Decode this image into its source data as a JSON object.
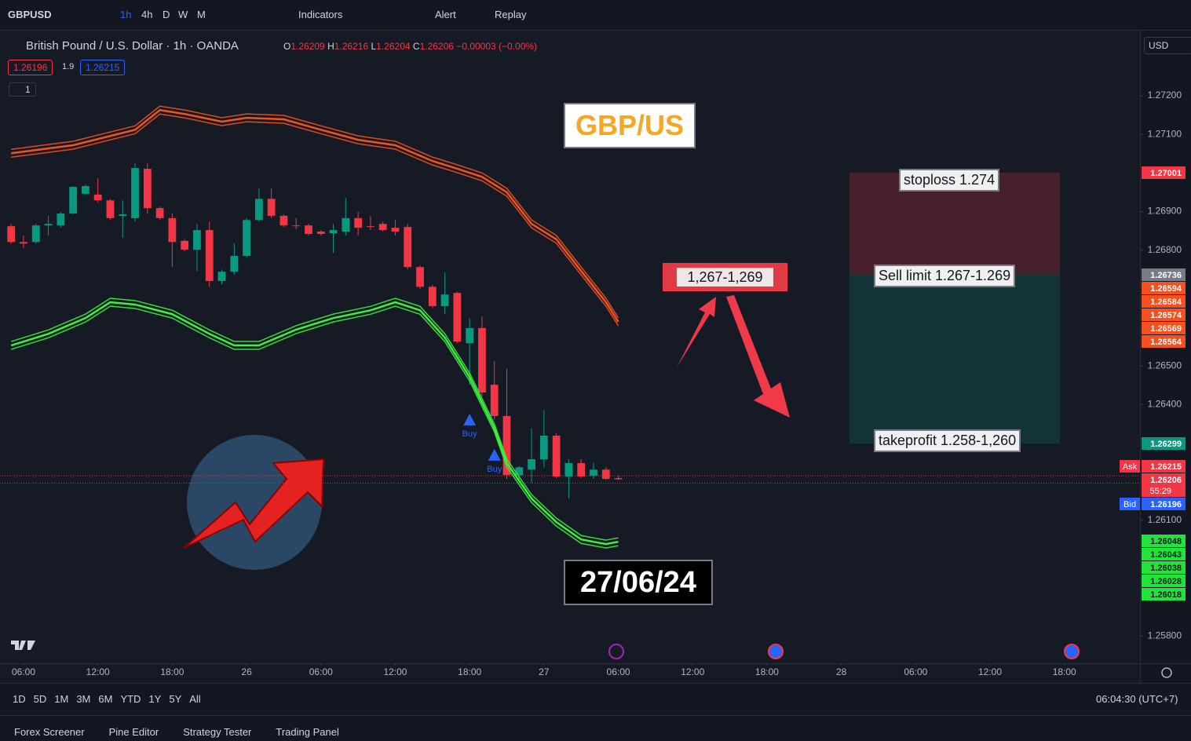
{
  "toolbar": {
    "symbol": "GBPUSD",
    "intervals": [
      "1h",
      "4h",
      "D",
      "W",
      "M"
    ],
    "indicators": "Indicators",
    "alert": "Alert",
    "replay": "Replay"
  },
  "legend": {
    "title": "British Pound / U.S. Dollar · 1h · OANDA",
    "o": "O",
    "h": "H",
    "l": "L",
    "c": "C",
    "change": "−0.00003 (−0.00%)",
    "sell": "1.26196",
    "spread": "1.9",
    "buy": "1.26215",
    "collapse": "1"
  },
  "currency": "USD",
  "chart_data": {
    "type": "candlestick",
    "up_color": "#089981",
    "down_color": "#f23645",
    "open": [
      1.26862,
      1.26821,
      1.26821,
      1.26864,
      1.26864,
      1.26895,
      1.26946,
      1.26944,
      1.26929,
      1.26889,
      1.26883,
      1.27011,
      1.26909,
      1.26883,
      1.26824,
      1.26801,
      1.26852,
      1.2672,
      1.26744,
      1.26785,
      1.26878,
      1.26933,
      1.26889,
      1.26864,
      1.26864,
      1.26848,
      1.26844,
      1.26848,
      1.26883,
      1.26862,
      1.26868,
      1.26858,
      1.2686,
      1.26756,
      1.26705,
      1.26655,
      1.26689,
      1.26559,
      1.26598,
      1.26451,
      1.2637,
      1.26217,
      1.26231,
      1.26258,
      1.26319,
      1.26213,
      1.26248,
      1.26215,
      1.26231,
      1.26209
    ],
    "high": [
      1.26868,
      1.26838,
      1.26868,
      1.26889,
      1.26899,
      1.26966,
      1.2697,
      1.26986,
      1.26933,
      1.26929,
      1.27025,
      1.27025,
      1.26913,
      1.26895,
      1.26828,
      1.26868,
      1.26874,
      1.2675,
      1.26817,
      1.26883,
      1.2696,
      1.2696,
      1.26893,
      1.26883,
      1.26868,
      1.26852,
      1.26868,
      1.26935,
      1.26899,
      1.26889,
      1.26874,
      1.26878,
      1.26868,
      1.2676,
      1.2671,
      1.26742,
      1.26693,
      1.26624,
      1.26628,
      1.26512,
      1.26492,
      1.26241,
      1.26339,
      1.26386,
      1.26325,
      1.26258,
      1.26258,
      1.26248,
      1.26237,
      1.26216
    ],
    "low": [
      1.26817,
      1.26805,
      1.26817,
      1.26838,
      1.26858,
      1.26893,
      1.26944,
      1.26923,
      1.26878,
      1.26832,
      1.26874,
      1.26895,
      1.26878,
      1.26756,
      1.26797,
      1.26746,
      1.26705,
      1.26712,
      1.26736,
      1.2678,
      1.26874,
      1.26883,
      1.2686,
      1.26854,
      1.26838,
      1.26838,
      1.26793,
      1.26838,
      1.26838,
      1.26852,
      1.26848,
      1.26838,
      1.2675,
      1.267,
      1.2665,
      1.26634,
      1.26559,
      1.26451,
      1.26421,
      1.2636,
      1.26207,
      1.26207,
      1.26197,
      1.26237,
      1.26209,
      1.26156,
      1.26209,
      1.26207,
      1.26205,
      1.26204
    ],
    "close": [
      1.26821,
      1.26817,
      1.26864,
      1.26868,
      1.26895,
      1.26964,
      1.26966,
      1.26929,
      1.26883,
      1.26893,
      1.27013,
      1.26909,
      1.26883,
      1.26821,
      1.26801,
      1.26852,
      1.2672,
      1.26744,
      1.26785,
      1.26878,
      1.26933,
      1.26889,
      1.26864,
      1.26862,
      1.26842,
      1.26842,
      1.26852,
      1.26883,
      1.26858,
      1.2686,
      1.26852,
      1.26848,
      1.26756,
      1.26705,
      1.26655,
      1.26685,
      1.26563,
      1.26598,
      1.26431,
      1.2637,
      1.26217,
      1.26237,
      1.26258,
      1.26319,
      1.26213,
      1.26248,
      1.26213,
      1.26231,
      1.26207,
      1.26206
    ],
    "bands": [
      {
        "color": "#f4511e",
        "x": [
          0,
          5,
          10,
          12,
          14,
          17,
          19,
          22,
          25,
          28,
          31,
          34,
          36,
          38,
          40,
          42,
          44,
          46,
          48,
          49
        ],
        "values": [
          1.27051,
          1.27072,
          1.27112,
          1.27163,
          1.27153,
          1.27133,
          1.27143,
          1.27139,
          1.27112,
          1.27086,
          1.27072,
          1.27031,
          1.27011,
          1.2699,
          1.2695,
          1.26868,
          1.26828,
          1.26746,
          1.26665,
          1.26614
        ]
      },
      {
        "color": "#3cf03c",
        "x": [
          0,
          3,
          6,
          8,
          10,
          13,
          16,
          18,
          20,
          23,
          26,
          29,
          31,
          33,
          35,
          37,
          39,
          40,
          42,
          44,
          46,
          48,
          49
        ],
        "values": [
          1.26553,
          1.26583,
          1.26624,
          1.26665,
          1.26659,
          1.26634,
          1.26583,
          1.26553,
          1.26553,
          1.26594,
          1.26624,
          1.26644,
          1.26665,
          1.26644,
          1.26573,
          1.26471,
          1.26339,
          1.26248,
          1.26156,
          1.26095,
          1.2605,
          1.26038,
          1.26044
        ]
      }
    ],
    "price_lines": [
      {
        "value": 1.26215,
        "color": "#f23645"
      },
      {
        "value": 1.26196,
        "color": "#2962ff"
      }
    ],
    "position": {
      "stop": 1.27001,
      "entry": 1.26736,
      "target": 1.26299
    },
    "signals": [
      {
        "x": 37,
        "label": "Buy"
      },
      {
        "x": 39,
        "label": "Buy"
      }
    ],
    "ylim": [
      1.25729,
      1.27367
    ],
    "yticks": [
      {
        "value": 1.272,
        "label": "1.27200"
      },
      {
        "value": 1.271,
        "label": "1.27100"
      },
      {
        "value": 1.269,
        "label": "1.26900"
      },
      {
        "value": 1.268,
        "label": "1.26800"
      },
      {
        "value": 1.265,
        "label": "1.26500"
      },
      {
        "value": 1.264,
        "label": "1.26400"
      },
      {
        "value": 1.261,
        "label": "1.26100"
      },
      {
        "value": 1.258,
        "label": "1.25800"
      }
    ],
    "xlim": [
      -0.9,
      91.1
    ],
    "xticks": [
      {
        "value": 1,
        "label": "06:00"
      },
      {
        "value": 7,
        "label": "12:00"
      },
      {
        "value": 13,
        "label": "18:00"
      },
      {
        "value": 19,
        "label": "26"
      },
      {
        "value": 25,
        "label": "06:00"
      },
      {
        "value": 31,
        "label": "12:00"
      },
      {
        "value": 37,
        "label": "18:00"
      },
      {
        "value": 43,
        "label": "27"
      },
      {
        "value": 49,
        "label": "06:00"
      },
      {
        "value": 55,
        "label": "12:00"
      },
      {
        "value": 61,
        "label": "18:00"
      },
      {
        "value": 67,
        "label": "28"
      },
      {
        "value": 73,
        "label": "06:00"
      },
      {
        "value": 79,
        "label": "12:00"
      },
      {
        "value": 85,
        "label": "18:00"
      }
    ]
  },
  "annotations": {
    "pair": "GBP/US",
    "zone": "1,267-1,269",
    "stoploss": "stoploss 1.274",
    "sell_limit": "Sell limit 1.267-1.269",
    "takeprofit": "takeprofit 1.258-1,260",
    "date": "27/06/24"
  },
  "price_tags": [
    {
      "text": "1.27001",
      "color": "#f23645"
    },
    {
      "text": "1.26736",
      "color": "#787b86"
    },
    {
      "text": "1.26594",
      "color": "#f4511e"
    },
    {
      "text": "1.26584",
      "color": "#f4511e"
    },
    {
      "text": "1.26574",
      "color": "#f4511e"
    },
    {
      "text": "1.26569",
      "color": "#f4511e"
    },
    {
      "text": "1.26564",
      "color": "#f4511e"
    },
    {
      "text": "1.26299",
      "color": "#089981"
    },
    {
      "text": "1.26215",
      "color": "#f23645",
      "label": "Ask"
    },
    {
      "text": "1.26206",
      "color": "#f23645",
      "sub": "55:29"
    },
    {
      "text": "1.26196",
      "color": "#2962ff",
      "label": "Bid"
    },
    {
      "text": "1.26048",
      "color": "#22e33a",
      "text_color": "#131722"
    },
    {
      "text": "1.26043",
      "color": "#22e33a",
      "text_color": "#131722"
    },
    {
      "text": "1.26038",
      "color": "#22e33a",
      "text_color": "#131722"
    },
    {
      "text": "1.26028",
      "color": "#22e33a",
      "text_color": "#131722"
    },
    {
      "text": "1.26018",
      "color": "#22e33a",
      "text_color": "#131722"
    }
  ],
  "bottom": {
    "ranges": [
      "1D",
      "5D",
      "1M",
      "3M",
      "6M",
      "YTD",
      "1Y",
      "5Y",
      "All"
    ],
    "clock": "06:04:30 (UTC+7)",
    "tabs": [
      "Forex Screener",
      "Pine Editor",
      "Strategy Tester",
      "Trading Panel"
    ]
  }
}
